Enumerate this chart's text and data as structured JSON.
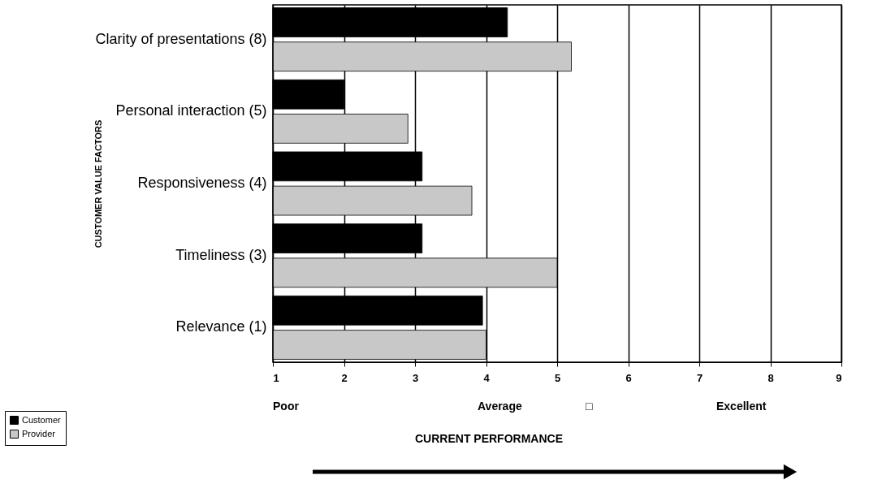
{
  "chart_data": {
    "type": "bar",
    "orientation": "horizontal",
    "categories": [
      "Clarity of presentations (8)",
      "Personal interaction (5)",
      "Responsiveness (4)",
      "Timeliness (3)",
      "Relevance (1)"
    ],
    "series": [
      {
        "name": "Customer",
        "color": "#000000",
        "values": [
          4.3,
          2.0,
          3.1,
          3.1,
          3.95
        ]
      },
      {
        "name": "Provider",
        "color": "#c8c8c8",
        "values": [
          5.2,
          2.9,
          3.8,
          5.0,
          4.0
        ]
      }
    ],
    "xlim": [
      1,
      9
    ],
    "xticks": [
      1,
      2,
      3,
      4,
      5,
      6,
      7,
      8,
      9
    ],
    "xlabel": "CURRENT PERFORMANCE",
    "ylabel": "CUSTOMER VALUE FACTORS",
    "annotations": [
      "Poor",
      "Average",
      "□",
      "Excellent"
    ],
    "grid": "x",
    "legend": "bottom left"
  }
}
